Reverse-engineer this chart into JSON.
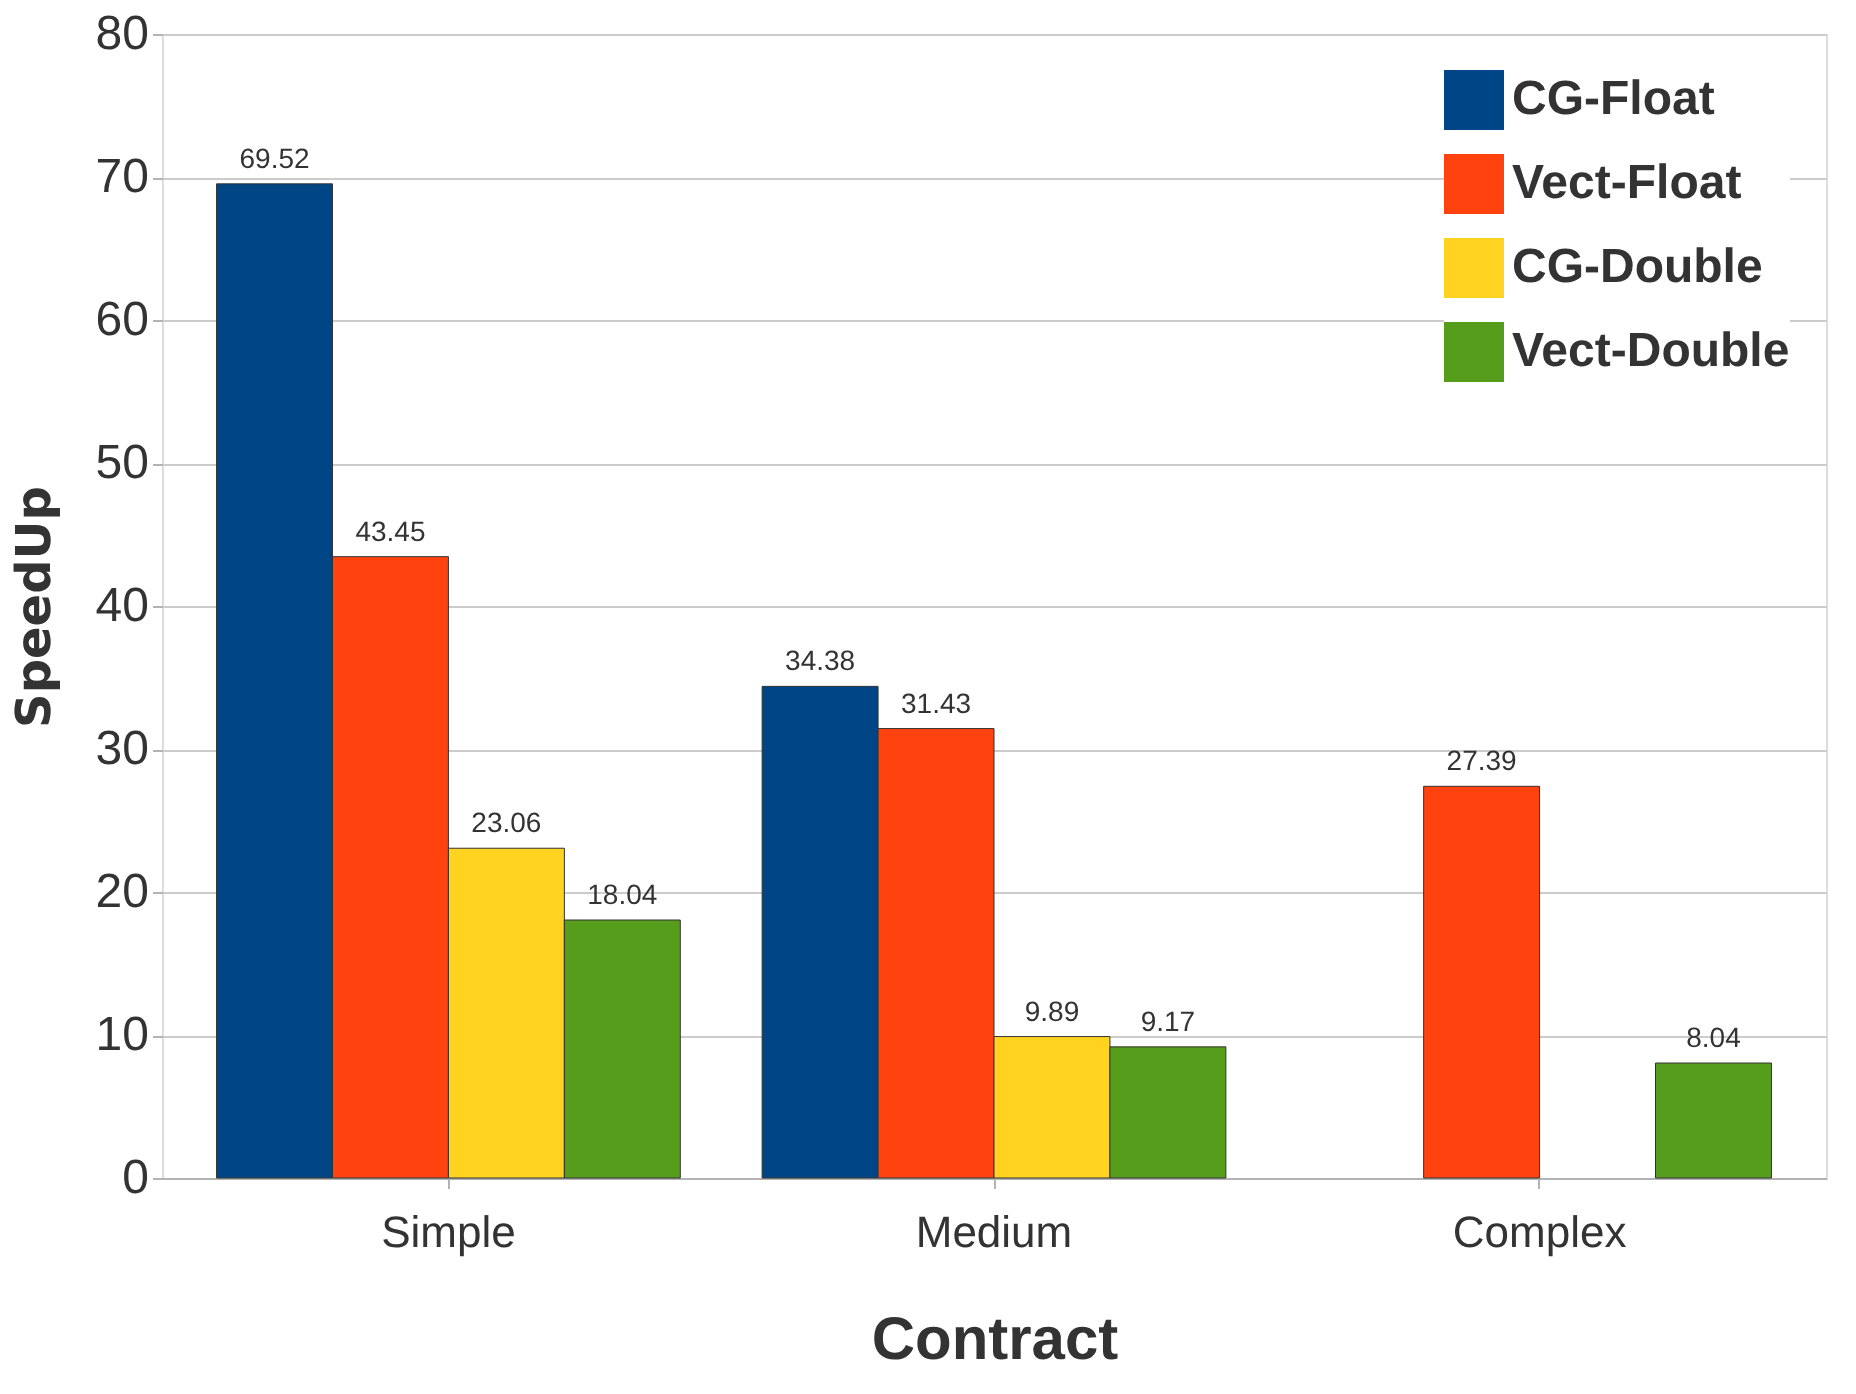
{
  "chart_data": {
    "type": "bar",
    "xlabel": "Contract",
    "ylabel": "SpeedUp",
    "categories": [
      "Simple",
      "Medium",
      "Complex"
    ],
    "series": [
      {
        "name": "CG-Float",
        "color": "#004586",
        "values": [
          69.52,
          34.38,
          null
        ]
      },
      {
        "name": "Vect-Float",
        "color": "#ff420e",
        "values": [
          43.45,
          31.43,
          27.39
        ]
      },
      {
        "name": "CG-Double",
        "color": "#ffd320",
        "values": [
          23.06,
          9.89,
          null
        ]
      },
      {
        "name": "Vect-Double",
        "color": "#579d1c",
        "values": [
          18.04,
          9.17,
          8.04
        ]
      }
    ],
    "ylim": [
      0,
      80
    ],
    "yticks": [
      0,
      10,
      20,
      30,
      40,
      50,
      60,
      70,
      80
    ],
    "grid": "y",
    "legend": "top right",
    "data_labels": true
  }
}
